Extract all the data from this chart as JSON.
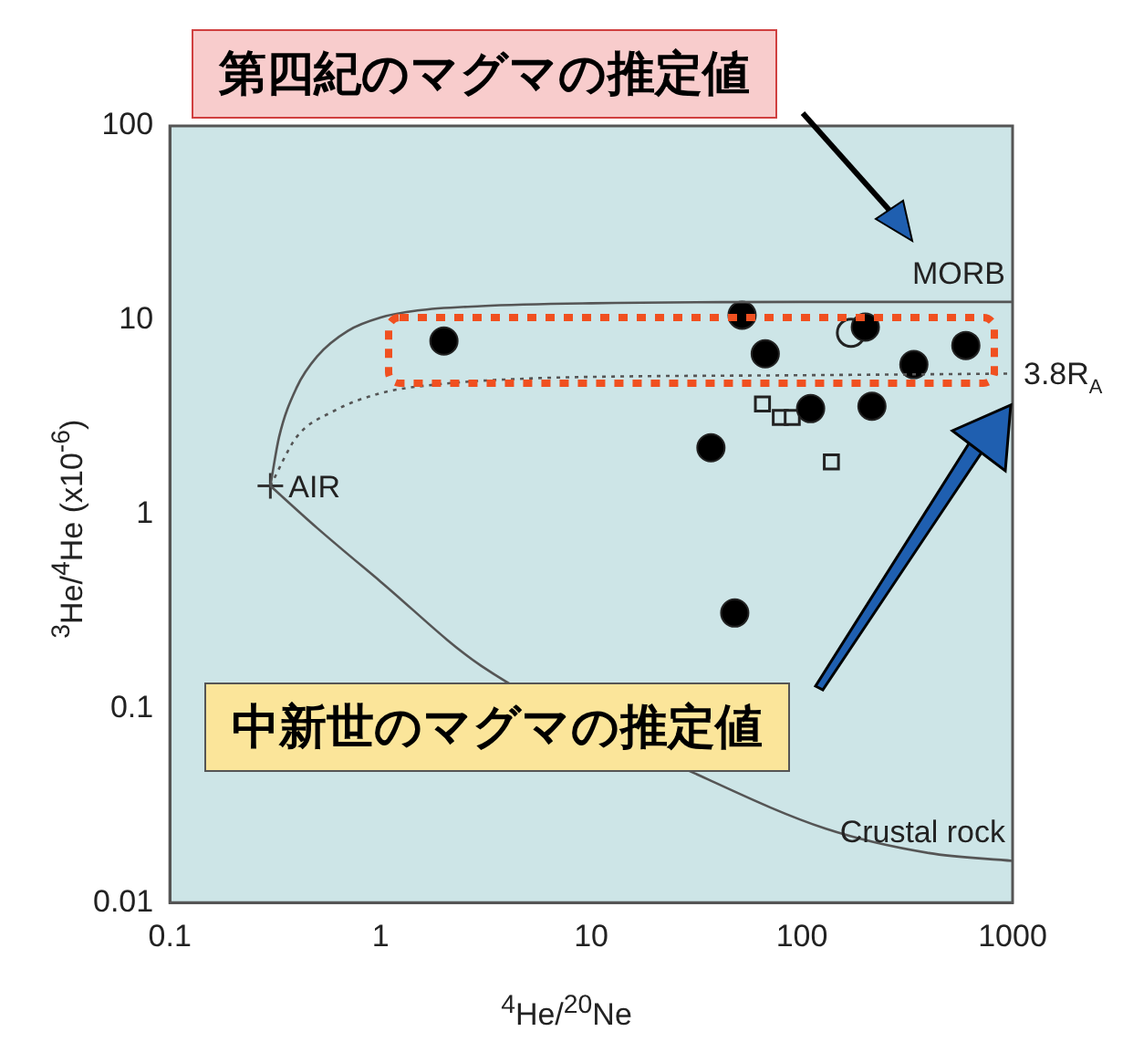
{
  "chart_data": {
    "type": "scatter",
    "xlabel": "$^{4}$He/$^{20}$Ne",
    "ylabel": "$^{3}$He/$^{4}$He (x10$^{-6}$)",
    "log": "xy",
    "grid": false,
    "legend": false,
    "xlim": [
      0.1,
      1000
    ],
    "xticks": [
      0.1,
      1,
      10,
      100,
      1000
    ],
    "ylim": [
      0.01,
      100
    ],
    "yticks": [
      0.01,
      0.1,
      1,
      10,
      100
    ],
    "annotations": [
      {
        "text": "AIR",
        "x": 0.3,
        "y": 1.4
      },
      "第四紀のマグマの推定値",
      "中新世のマグマの推定値"
    ],
    "series": [
      {
        "type": "line",
        "name": "MORB",
        "color": "#555555",
        "line_style": "solid",
        "marker": "none",
        "x": [
          0.3,
          0.33,
          0.4,
          0.5,
          0.7,
          1,
          1.5,
          3,
          10,
          100,
          1000
        ],
        "values": [
          1.4,
          2.5,
          4.5,
          6.5,
          8.8,
          10.3,
          11.2,
          11.8,
          12.2,
          12.4,
          12.4
        ]
      },
      {
        "type": "line",
        "name": "3.8R$_{A}$",
        "color": "#555555",
        "line_style": "dotted",
        "marker": "none",
        "x": [
          0.3,
          0.4,
          0.6,
          1,
          2,
          5,
          10,
          100,
          1000
        ],
        "values": [
          1.4,
          2.5,
          3.4,
          4.2,
          4.7,
          5,
          5.1,
          5.2,
          5.3
        ]
      },
      {
        "type": "line",
        "name": "Crustal rock",
        "color": "#555555",
        "line_style": "solid",
        "marker": "none",
        "x": [
          0.3,
          0.5,
          1,
          3,
          10,
          36,
          130,
          400,
          1000
        ],
        "values": [
          1.4,
          0.85,
          0.45,
          0.166,
          null,
          0.043,
          0.024,
          0.018,
          0.0164
        ]
      },
      {
        "color": "#333333",
        "marker": "cross",
        "x": [
          0.3
        ],
        "values": [
          1.4
        ]
      },
      {
        "color": "#000000",
        "marker": "circle",
        "x": [
          2,
          52,
          67,
          200,
          600,
          340,
          110,
          215,
          37,
          48
        ],
        "values": [
          7.8,
          10.6,
          6.7,
          9.2,
          7.4,
          5.9,
          3.5,
          3.6,
          2.2,
          0.31
        ]
      },
      {
        "color": "#cde5e7",
        "marker": "circle",
        "x": [
          171
        ],
        "values": [
          8.6
        ]
      },
      {
        "color": "#cde5e7",
        "marker": "square",
        "x": [
          65,
          79,
          90,
          138
        ],
        "values": [
          3.7,
          3.15,
          3.15,
          1.86
        ]
      }
    ]
  }
}
